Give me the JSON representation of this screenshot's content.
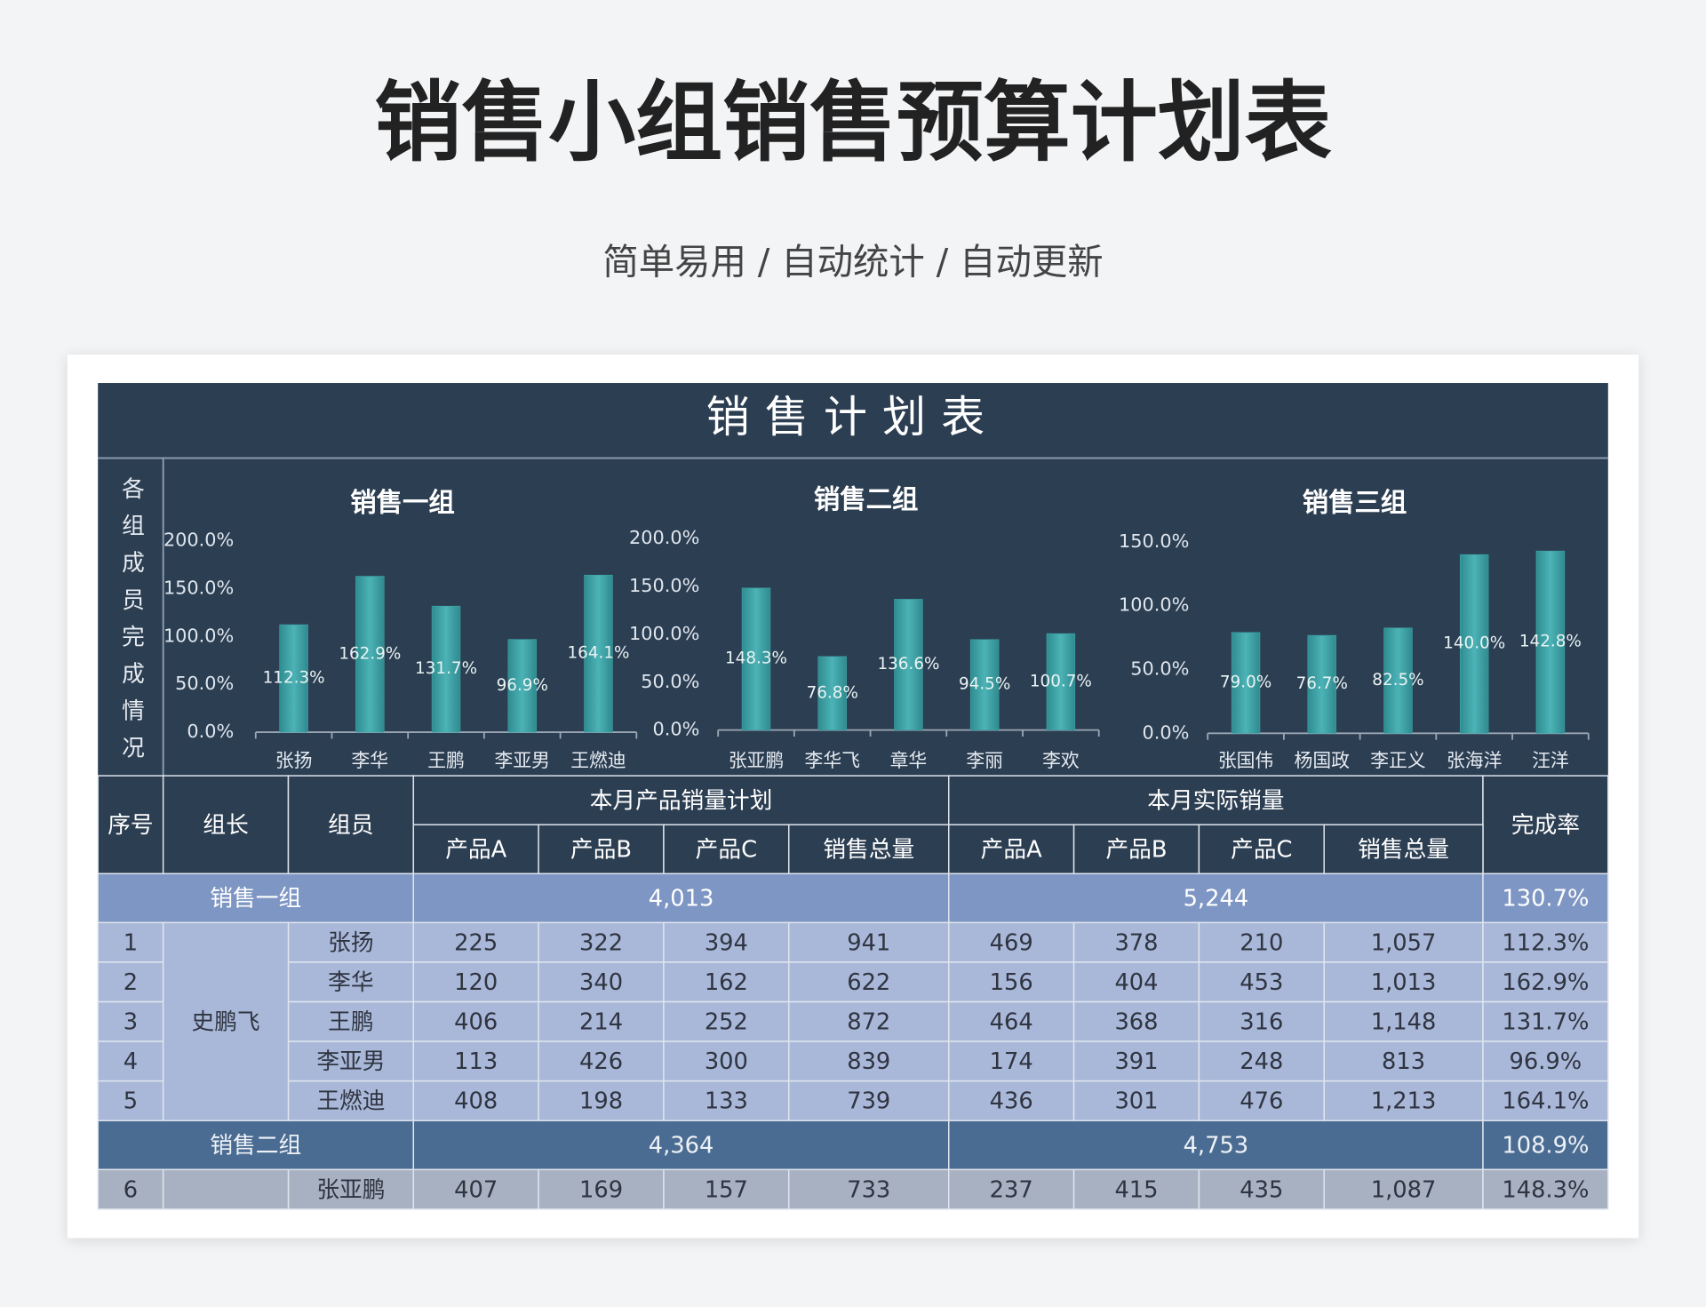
{
  "header": {
    "title": "销售小组销售预算计划表",
    "subtitle": "简单易用 / 自动统计 / 自动更新"
  },
  "sheet": {
    "title": "销售计划表",
    "side_label": "各组成员完成情况"
  },
  "chart_data": [
    {
      "type": "bar",
      "title": "销售一组",
      "categories": [
        "张扬",
        "李华",
        "王鹏",
        "李亚男",
        "王燃迪"
      ],
      "values": [
        112.3,
        162.9,
        131.7,
        96.9,
        164.1
      ],
      "value_labels": [
        "112.3%",
        "162.9%",
        "131.7%",
        "96.9%",
        "164.1%"
      ],
      "color": "#3ea4a7",
      "ylim": [
        0,
        200
      ],
      "yticks": [
        {
          "value": 0,
          "label": "0.0%"
        },
        {
          "value": 50,
          "label": "50.0%"
        },
        {
          "value": 100,
          "label": "100.0%"
        },
        {
          "value": 150,
          "label": "150.0%"
        },
        {
          "value": 200,
          "label": "200.0%"
        }
      ]
    },
    {
      "type": "bar",
      "title": "销售二组",
      "categories": [
        "张亚鹏",
        "李华飞",
        "章华",
        "李丽",
        "李欢"
      ],
      "values": [
        148.3,
        76.8,
        136.6,
        94.5,
        100.7
      ],
      "value_labels": [
        "148.3%",
        "76.8%",
        "136.6%",
        "94.5%",
        "100.7%"
      ],
      "color": "#3ea4a7",
      "ylim": [
        0,
        200
      ],
      "yticks": [
        {
          "value": 0,
          "label": "0.0%"
        },
        {
          "value": 50,
          "label": "50.0%"
        },
        {
          "value": 100,
          "label": "100.0%"
        },
        {
          "value": 150,
          "label": "150.0%"
        },
        {
          "value": 200,
          "label": "200.0%"
        }
      ]
    },
    {
      "type": "bar",
      "title": "销售三组",
      "categories": [
        "张国伟",
        "杨国政",
        "李正义",
        "张海洋",
        "汪洋"
      ],
      "values": [
        79.0,
        76.7,
        82.5,
        140.0,
        142.8
      ],
      "value_labels": [
        "79.0%",
        "76.7%",
        "82.5%",
        "140.0%",
        "142.8%"
      ],
      "color": "#3ea4a7",
      "ylim": [
        0,
        150
      ],
      "yticks": [
        {
          "value": 0,
          "label": "0.0%"
        },
        {
          "value": 50,
          "label": "50.0%"
        },
        {
          "value": 100,
          "label": "100.0%"
        },
        {
          "value": 150,
          "label": "150.0%"
        }
      ]
    }
  ],
  "table": {
    "header": {
      "seq": "序号",
      "leader": "组长",
      "member": "组员",
      "plan": "本月产品销量计划",
      "actual": "本月实际销量",
      "rate": "完成率",
      "sub": [
        "产品A",
        "产品B",
        "产品C",
        "销售总量",
        "产品A",
        "产品B",
        "产品C",
        "销售总量"
      ]
    },
    "groups": [
      {
        "name": "销售一组",
        "plan_total": "4,013",
        "actual_total": "5,244",
        "rate": "130.7%",
        "leader": "史鹏飞",
        "rows": [
          [
            1,
            "张扬",
            225,
            322,
            394,
            941,
            469,
            378,
            210,
            "1,057",
            "112.3%"
          ],
          [
            2,
            "李华",
            120,
            340,
            162,
            622,
            156,
            404,
            453,
            "1,013",
            "162.9%"
          ],
          [
            3,
            "王鹏",
            406,
            214,
            252,
            872,
            464,
            368,
            316,
            "1,148",
            "131.7%"
          ],
          [
            4,
            "李亚男",
            113,
            426,
            300,
            839,
            174,
            391,
            248,
            813,
            "96.9%"
          ],
          [
            5,
            "王燃迪",
            408,
            198,
            133,
            739,
            436,
            301,
            476,
            "1,213",
            "164.1%"
          ]
        ]
      },
      {
        "name": "销售二组",
        "plan_total": "4,364",
        "actual_total": "4,753",
        "rate": "108.9%",
        "rows": [
          [
            6,
            "张亚鹏",
            407,
            169,
            157,
            733,
            237,
            415,
            435,
            "1,087",
            "148.3%"
          ]
        ]
      }
    ]
  }
}
